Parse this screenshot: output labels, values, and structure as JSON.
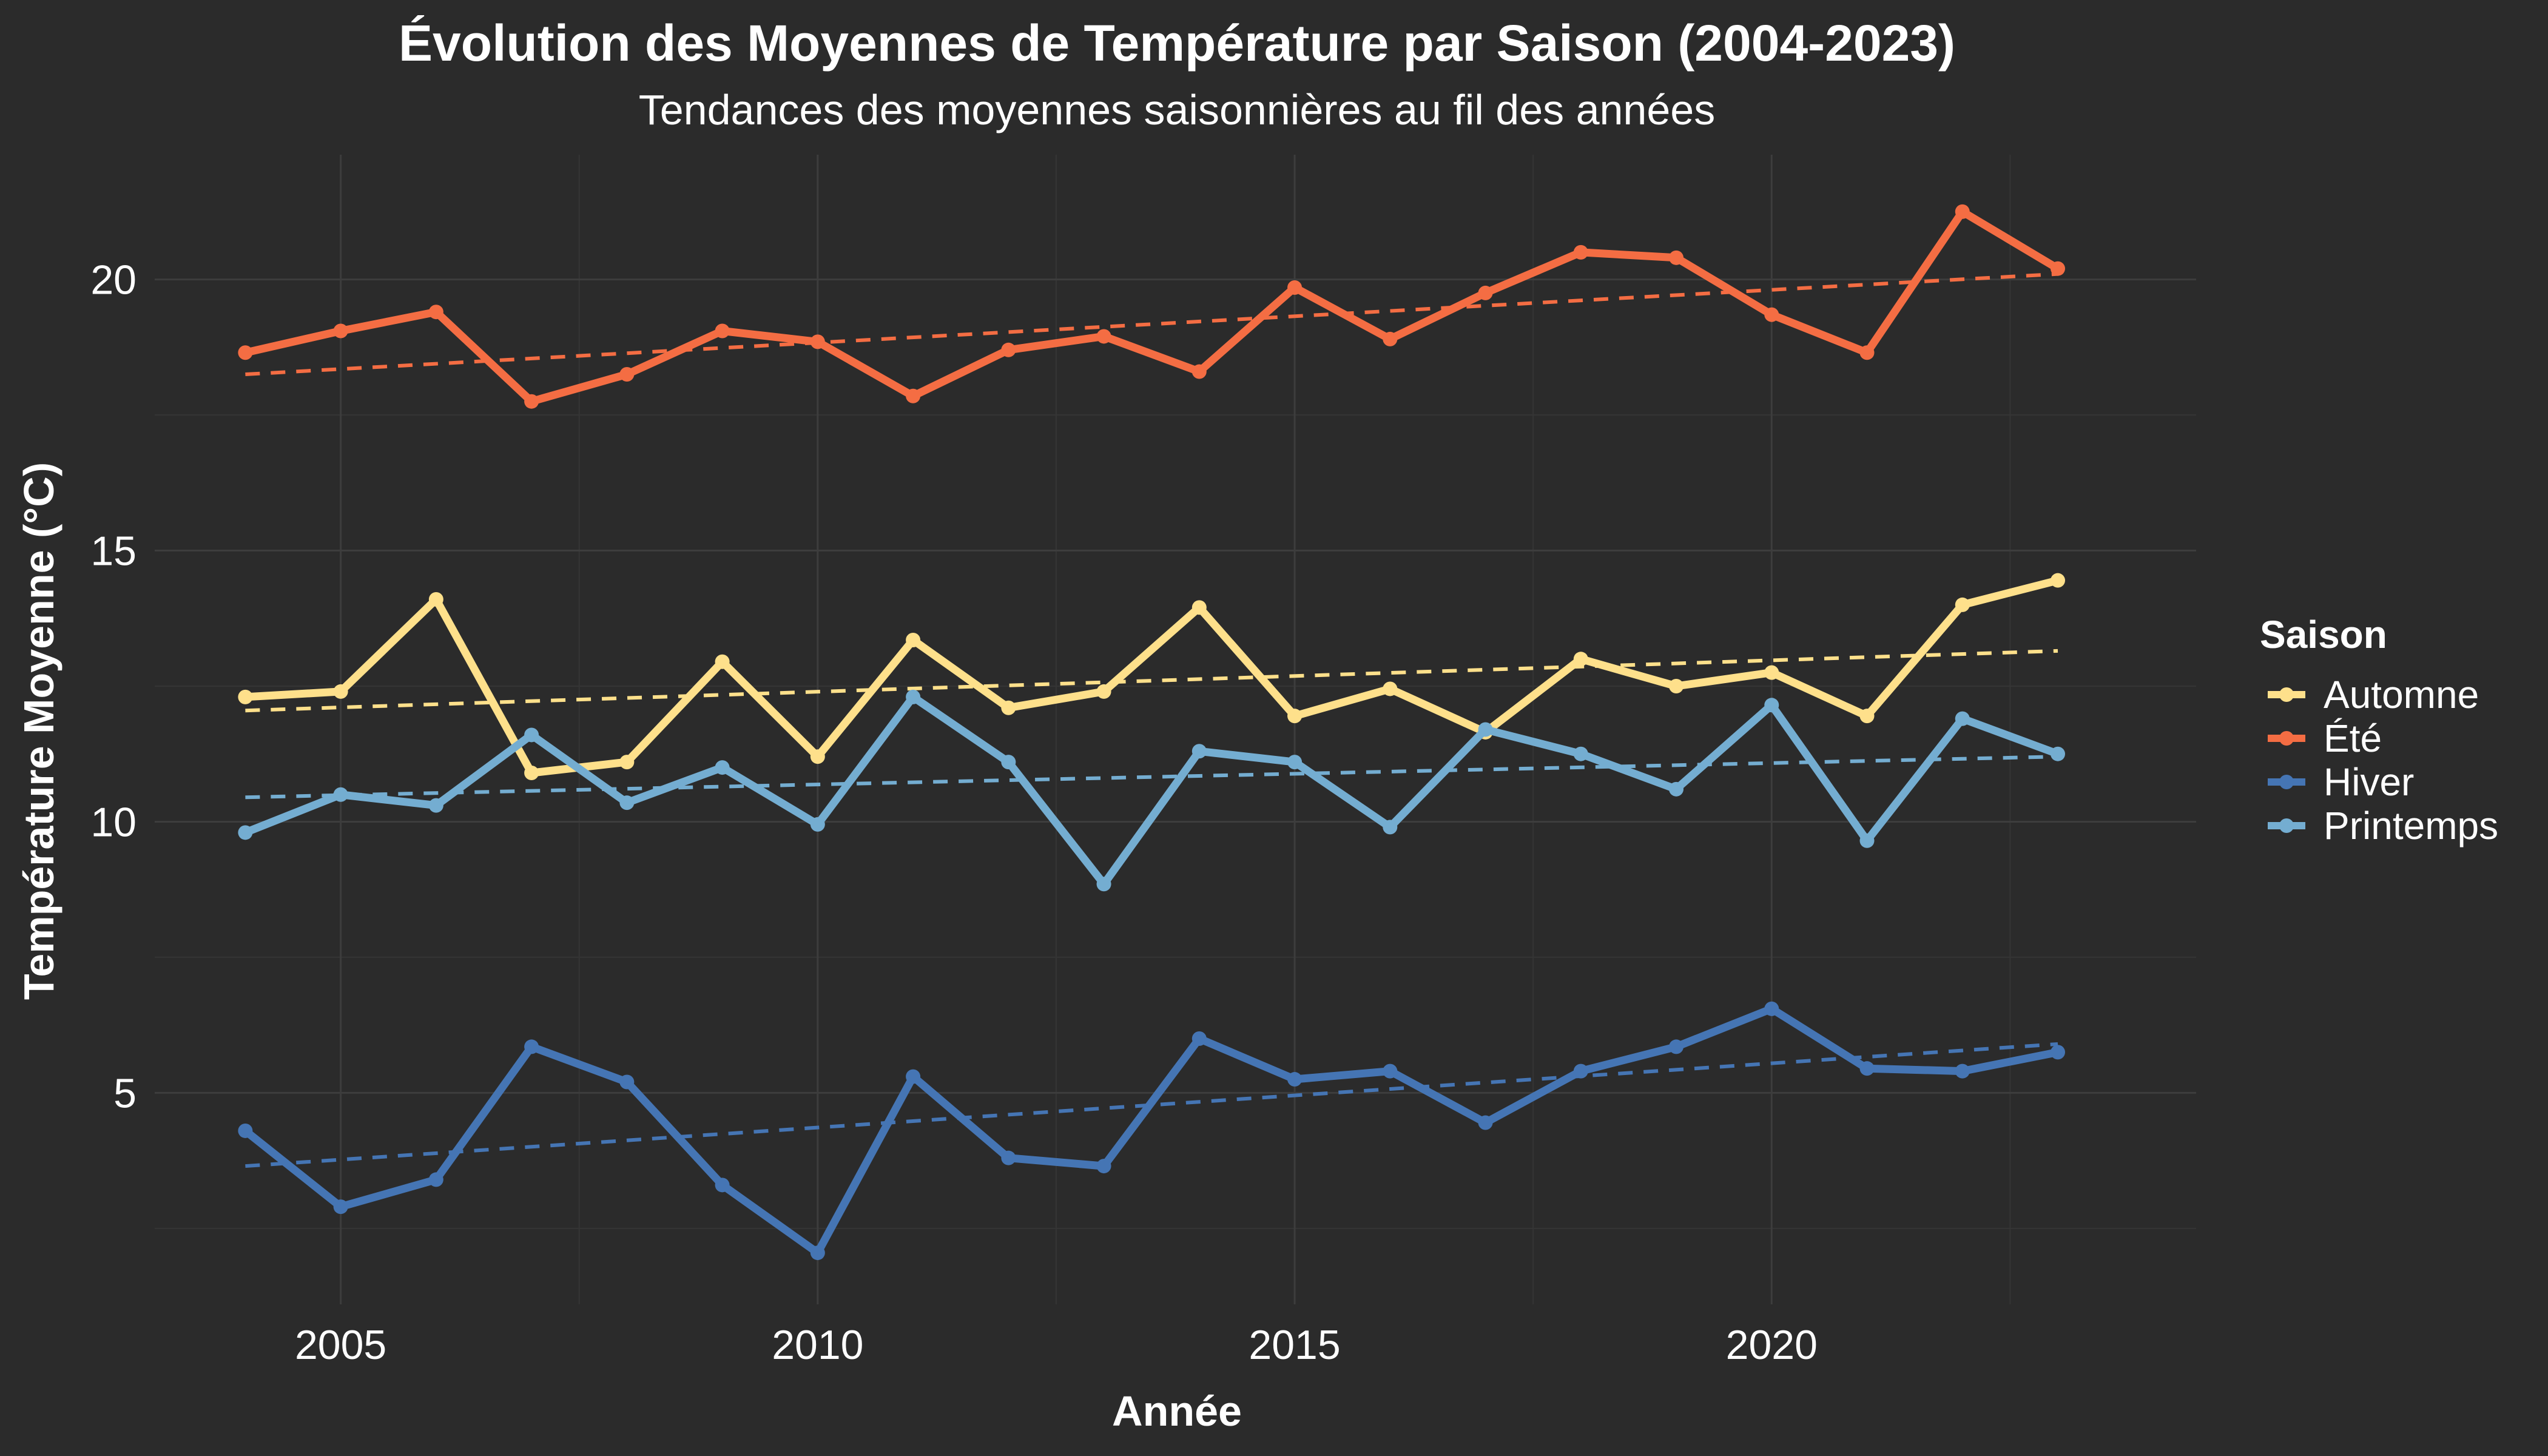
{
  "chart_data": {
    "type": "line",
    "title": "Évolution des Moyennes de Température par Saison (2004-2023)",
    "subtitle": "Tendances des moyennes saisonnières au fil des années",
    "xlabel": "Année",
    "ylabel": "Température Moyenne (°C)",
    "xlim": [
      2003.05,
      2024.45
    ],
    "ylim": [
      1.1,
      22.3
    ],
    "x_ticks": [
      2005,
      2010,
      2015,
      2020
    ],
    "y_ticks": [
      5,
      10,
      15,
      20
    ],
    "grid": true,
    "legend": {
      "title": "Saison",
      "position": "right"
    },
    "x": [
      2004,
      2005,
      2006,
      2007,
      2008,
      2009,
      2010,
      2011,
      2012,
      2013,
      2014,
      2015,
      2016,
      2017,
      2018,
      2019,
      2020,
      2021,
      2022,
      2023
    ],
    "series": [
      {
        "name": "Automne",
        "color": "#fee08b",
        "values": [
          12.3,
          12.4,
          14.1,
          10.9,
          11.1,
          12.95,
          11.2,
          13.35,
          12.1,
          12.4,
          13.95,
          11.95,
          12.45,
          11.65,
          13.0,
          12.5,
          12.75,
          11.95,
          14.0,
          14.45
        ],
        "trend": [
          12.05,
          13.15
        ]
      },
      {
        "name": "Été",
        "color": "#f46d43",
        "values": [
          18.65,
          19.05,
          19.4,
          17.75,
          18.25,
          19.05,
          18.85,
          17.85,
          18.7,
          18.95,
          18.3,
          19.85,
          18.9,
          19.75,
          20.5,
          20.4,
          19.35,
          18.65,
          21.25,
          20.2
        ],
        "trend": [
          18.25,
          20.1
        ]
      },
      {
        "name": "Hiver",
        "color": "#4575b4",
        "values": [
          4.3,
          2.9,
          3.4,
          5.85,
          5.2,
          3.3,
          2.05,
          5.3,
          3.8,
          3.65,
          6.0,
          5.25,
          5.4,
          4.45,
          5.4,
          5.85,
          6.55,
          5.45,
          5.4,
          5.75
        ],
        "trend": [
          3.65,
          5.9
        ]
      },
      {
        "name": "Printemps",
        "color": "#74add1",
        "values": [
          9.8,
          10.5,
          10.3,
          11.6,
          10.35,
          11.0,
          9.95,
          12.3,
          11.1,
          8.85,
          11.3,
          11.1,
          9.9,
          11.7,
          11.25,
          10.6,
          12.15,
          9.65,
          11.9,
          11.25
        ],
        "trend": [
          10.45,
          11.2
        ]
      }
    ]
  }
}
